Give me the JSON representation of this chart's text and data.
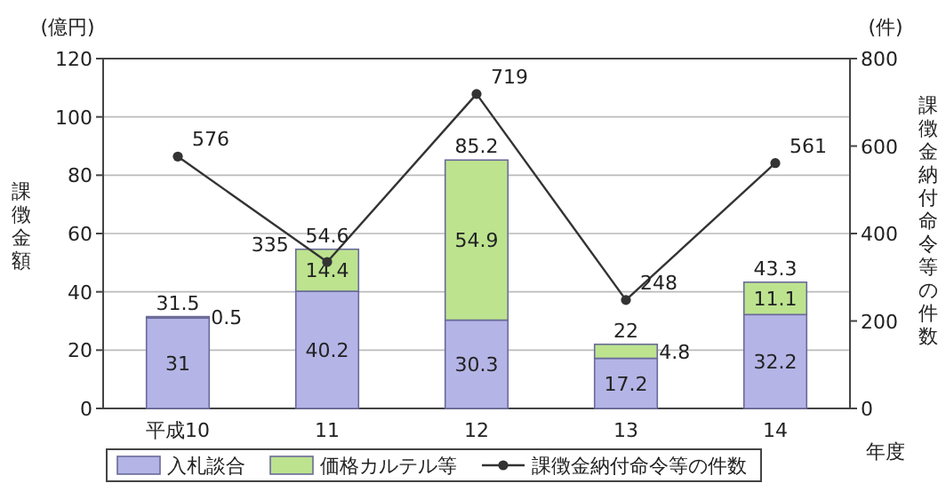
{
  "chart_data": {
    "type": "bar",
    "stacked": true,
    "categories": [
      "平成10",
      "11",
      "12",
      "13",
      "14"
    ],
    "series": [
      {
        "name": "入札談合",
        "color": "#b4b4e6",
        "values": [
          31,
          40.2,
          30.3,
          17.2,
          32.2
        ]
      },
      {
        "name": "価格カルテル等",
        "color": "#bde38f",
        "values": [
          0.5,
          14.4,
          54.9,
          4.8,
          11.1
        ]
      },
      {
        "name": "課徴金納付命令等の件数",
        "type": "line",
        "axis": "y2",
        "color": "#333333",
        "values": [
          576,
          335,
          719,
          248,
          561
        ]
      }
    ],
    "totals": [
      "31.5",
      "54.6",
      "85.2",
      "22",
      "43.3"
    ],
    "data_labels": true,
    "marker": "circle",
    "line_style": "solid",
    "ylim": [
      0,
      120
    ],
    "yticks": [
      0,
      20,
      40,
      60,
      80,
      100,
      120
    ],
    "y2lim": [
      0,
      800
    ],
    "y2ticks": [
      0,
      200,
      400,
      600,
      800
    ],
    "ylabel": "課徴金額",
    "y2label": "課徴金納付命令等の件数",
    "xlabel": "年度",
    "annotations": [
      "(億円)",
      "(件)"
    ],
    "grid": "y",
    "legend": "bottom"
  }
}
